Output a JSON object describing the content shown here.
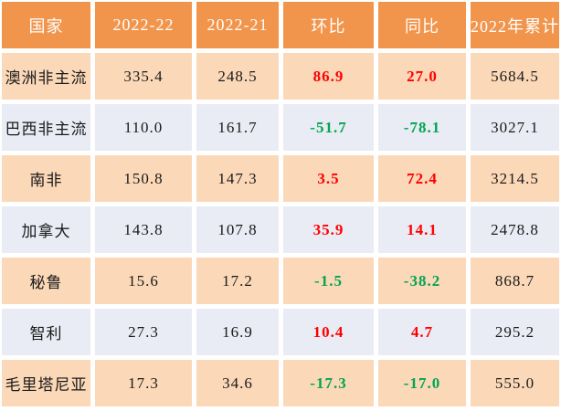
{
  "chart_data": {
    "type": "table",
    "columns": [
      "国家",
      "2022-22",
      "2022-21",
      "环比",
      "同比",
      "2022年累计"
    ],
    "rows": [
      [
        "澳洲非主流",
        "335.4",
        "248.5",
        "86.9",
        "27.0",
        "5684.5"
      ],
      [
        "巴西非主流",
        "110.0",
        "161.7",
        "-51.7",
        "-78.1",
        "3027.1"
      ],
      [
        "南非",
        "150.8",
        "147.3",
        "3.5",
        "72.4",
        "3214.5"
      ],
      [
        "加拿大",
        "143.8",
        "107.8",
        "35.9",
        "14.1",
        "2478.8"
      ],
      [
        "秘鲁",
        "15.6",
        "17.2",
        "-1.5",
        "-38.2",
        "868.7"
      ],
      [
        "智利",
        "27.3",
        "16.9",
        "10.4",
        "4.7",
        "295.2"
      ],
      [
        "毛里塔尼亚",
        "17.3",
        "34.6",
        "-17.3",
        "-17.0",
        "555.0"
      ]
    ],
    "signed_columns": [
      3,
      4
    ],
    "colors": {
      "header_bg": "#F2954C",
      "header_text": "#FFFFFF",
      "row_odd_bg": "#FBD8B8",
      "row_even_bg": "#E9ECF4",
      "positive_text": "#FF0000",
      "negative_text": "#00A651",
      "default_text": "#1A1A1A",
      "page_bg": "#FFFFFF"
    }
  }
}
